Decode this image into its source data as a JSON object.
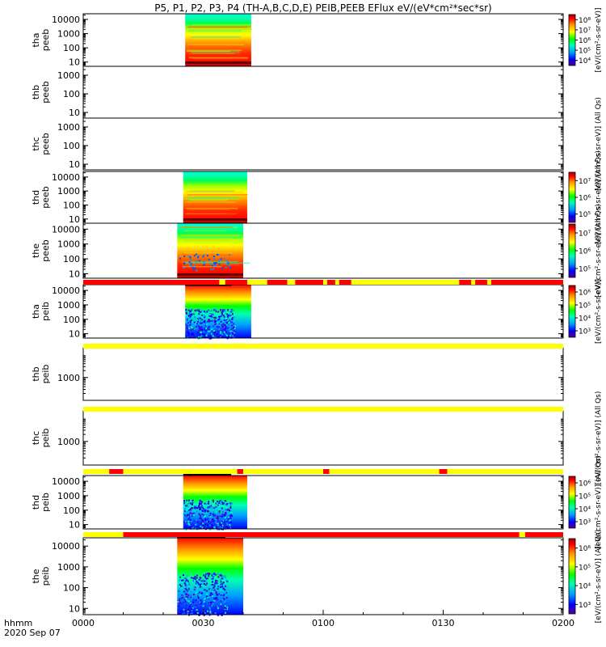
{
  "chart_data": {
    "type": "heatmap",
    "title": "P5, P1, P2, P3, P4 (TH-A,B,C,D,E) PEIB,PEEB EFlux eV/(eV*cm²*sec*sr)",
    "time_axis": {
      "label_line1": "hhmm",
      "label_line2": "2020 Sep 07",
      "ticks": [
        "0000",
        "0030",
        "0100",
        "0130",
        "0200"
      ],
      "tick_minutes": [
        0,
        30,
        60,
        90,
        120
      ],
      "range_minutes": [
        0,
        120
      ]
    },
    "colorbar_unit": "[eV/(cm²-s-sr-eV)]",
    "colorbar_unit_allqs": "[eV/(cm²-s-sr-eV)] (All Qs)",
    "colormap": [
      "#5a0096",
      "#0000ff",
      "#00a0ff",
      "#00ffb4",
      "#00ff00",
      "#ffff00",
      "#ff9600",
      "#ff0000",
      "#aa0000"
    ],
    "flag_colors": {
      "red": "#ff0000",
      "yellow": "#ffff00"
    },
    "panels": [
      {
        "id": "tha-peeb",
        "probe": "tha",
        "quantity": "peeb",
        "yticks": [
          "10",
          "100",
          "1000",
          "10000"
        ],
        "ylog": true,
        "ylim_eV": [
          5,
          25000
        ],
        "data_window_min": [
          25.5,
          42.0
        ],
        "has_data": true,
        "colorbar_ticks": [
          "10⁴",
          "10⁵",
          "10⁶",
          "10⁷",
          "10⁸"
        ],
        "colorbar_unit_ref": "plain"
      },
      {
        "id": "thb-peeb",
        "probe": "thb",
        "quantity": "peeb",
        "yticks": [
          "10",
          "100",
          "1000"
        ],
        "ylog": true,
        "ylim_eV": [
          5,
          3000
        ],
        "has_data": false,
        "colorbar_unit_ref": "plain"
      },
      {
        "id": "thc-peeb",
        "probe": "thc",
        "quantity": "peeb",
        "yticks": [
          "10",
          "100",
          "1000"
        ],
        "ylog": true,
        "ylim_eV": [
          5,
          3000
        ],
        "has_data": false,
        "colorbar_unit_ref": "allqs"
      },
      {
        "id": "thd-peeb",
        "probe": "thd",
        "quantity": "peeb",
        "yticks": [
          "10",
          "100",
          "1000",
          "10000"
        ],
        "ylog": true,
        "ylim_eV": [
          5,
          25000
        ],
        "data_window_min": [
          25.0,
          41.0
        ],
        "has_data": true,
        "colorbar_ticks": [
          "10⁵",
          "10⁶",
          "10⁷"
        ],
        "colorbar_unit_ref": "allqs"
      },
      {
        "id": "the-peeb",
        "probe": "the",
        "quantity": "peeb",
        "yticks": [
          "10",
          "100",
          "1000",
          "10000"
        ],
        "ylog": true,
        "ylim_eV": [
          5,
          25000
        ],
        "data_window_min": [
          23.5,
          40.0
        ],
        "has_data": true,
        "colorbar_ticks": [
          "10⁵",
          "10⁶",
          "10⁷"
        ],
        "colorbar_unit_ref": "allqs"
      },
      {
        "id": "tha-peib",
        "probe": "tha",
        "quantity": "peib",
        "yticks": [
          "10",
          "100",
          "1000",
          "10000"
        ],
        "ylog": true,
        "ylim_eV": [
          5,
          25000
        ],
        "data_window_min": [
          25.5,
          42.0
        ],
        "has_data": true,
        "colorbar_ticks": [
          "10³",
          "10⁴",
          "10⁵",
          "10⁶"
        ],
        "colorbar_unit_ref": "plain"
      },
      {
        "id": "thb-peib",
        "probe": "thb",
        "quantity": "peib",
        "yticks": [
          "1000"
        ],
        "ylog": true,
        "ylim_eV": [
          100,
          20000
        ],
        "has_data": false,
        "colorbar_unit_ref": "plain"
      },
      {
        "id": "thc-peib",
        "probe": "thc",
        "quantity": "peib",
        "yticks": [
          "1000"
        ],
        "ylog": true,
        "ylim_eV": [
          100,
          20000
        ],
        "has_data": false,
        "colorbar_unit_ref": "allqs"
      },
      {
        "id": "thd-peib",
        "probe": "thd",
        "quantity": "peib",
        "yticks": [
          "10",
          "100",
          "1000",
          "10000"
        ],
        "ylog": true,
        "ylim_eV": [
          5,
          25000
        ],
        "data_window_min": [
          25.0,
          41.0
        ],
        "has_data": true,
        "colorbar_ticks": [
          "10³",
          "10⁴",
          "10⁵",
          "10⁶"
        ],
        "colorbar_unit_ref": "allqs"
      },
      {
        "id": "the-peib",
        "probe": "the",
        "quantity": "peib",
        "yticks": [
          "10",
          "100",
          "1000",
          "10000"
        ],
        "ylog": true,
        "ylim_eV": [
          5,
          25000
        ],
        "data_window_min": [
          23.5,
          40.0
        ],
        "has_data": true,
        "colorbar_ticks": [
          "10³",
          "10⁴",
          "10⁵",
          "10⁶"
        ],
        "colorbar_unit_ref": "allqs"
      }
    ],
    "flag_bars": [
      {
        "after_panel": "the-peeb",
        "base": "red",
        "segments": [
          [
            34,
            35.5,
            "yellow"
          ],
          [
            41,
            46,
            "yellow"
          ],
          [
            51,
            53,
            "yellow"
          ],
          [
            60,
            61,
            "yellow"
          ],
          [
            63,
            64,
            "yellow"
          ],
          [
            67,
            94,
            "yellow"
          ],
          [
            97,
            98,
            "yellow"
          ],
          [
            101,
            102,
            "yellow"
          ]
        ],
        "black_markers": [
          [
            25.5,
            37
          ]
        ]
      },
      {
        "after_panel": "tha-peib",
        "base": "yellow",
        "segments": []
      },
      {
        "after_panel": "thb-peib",
        "base": "yellow",
        "segments": []
      },
      {
        "after_panel": "thc-peib",
        "base": "yellow",
        "segments": [
          [
            6.5,
            10,
            "red"
          ],
          [
            38.5,
            40,
            "red"
          ],
          [
            60,
            61.5,
            "red"
          ],
          [
            89,
            91,
            "red"
          ]
        ],
        "black_markers": [
          [
            25,
            37
          ]
        ]
      },
      {
        "after_panel": "thd-peib",
        "base": "red",
        "segments": [
          [
            0,
            10,
            "yellow"
          ],
          [
            109,
            110.5,
            "yellow"
          ]
        ],
        "black_markers": [
          [
            23.5,
            35.5
          ]
        ]
      }
    ]
  }
}
